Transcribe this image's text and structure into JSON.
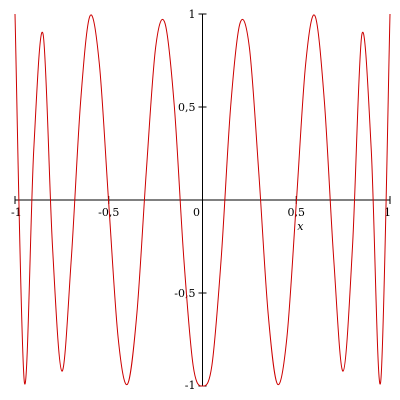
{
  "chart_data": {
    "type": "line",
    "xlabel": "x",
    "ylabel": "",
    "xlim": [
      -1,
      1
    ],
    "ylim": [
      -1,
      1
    ],
    "grid": false,
    "legend": "none",
    "x_ticks": [
      -1,
      -0.5,
      0,
      0.5,
      1
    ],
    "x_tick_labels": [
      "-1",
      "-0,5",
      "0",
      "0,5",
      "1"
    ],
    "y_ticks": [
      -1,
      -0.5,
      0.5,
      1
    ],
    "y_tick_labels": [
      "-1",
      "-0,5",
      "0,5",
      "1"
    ],
    "series": [
      {
        "color": "#cc0000",
        "x": [
          -1,
          -0.95,
          -0.9,
          -0.85,
          -0.8,
          -0.75,
          -0.7,
          -0.65,
          -0.6,
          -0.55,
          -0.5,
          -0.45,
          -0.4,
          -0.35,
          -0.3,
          -0.25,
          -0.2,
          -0.15,
          -0.1,
          -0.05,
          0,
          0.05,
          0.1,
          0.15,
          0.2,
          0.25,
          0.3,
          0.35,
          0.4,
          0.45,
          0.5,
          0.55,
          0.6,
          0.65,
          0.7,
          0.75,
          0.8,
          0.85,
          0.9,
          0.95,
          1
        ],
        "y": [
          1.0,
          -0.98,
          0.27,
          0.89,
          -0.25,
          -0.92,
          -0.32,
          0.53,
          0.99,
          0.73,
          -0.02,
          -0.74,
          -0.99,
          -0.61,
          0.15,
          0.82,
          0.95,
          0.5,
          -0.31,
          -0.89,
          -1.0,
          -0.89,
          -0.31,
          0.5,
          0.95,
          0.82,
          0.15,
          -0.61,
          -0.99,
          -0.74,
          -0.02,
          0.73,
          0.99,
          0.53,
          -0.32,
          -0.92,
          -0.25,
          0.89,
          0.27,
          -0.98,
          1.0
        ]
      }
    ]
  }
}
